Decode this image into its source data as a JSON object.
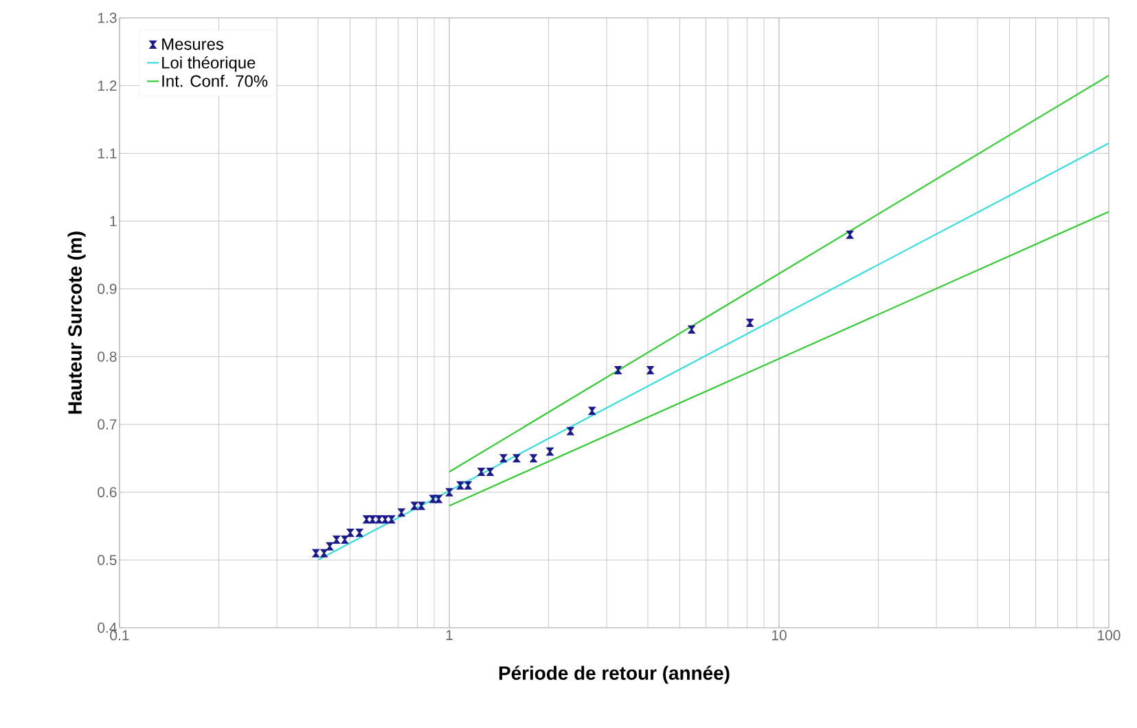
{
  "chart_data": {
    "type": "scatter",
    "xlabel": "Période de retour (année)",
    "ylabel": "Hauteur Surcote (m)",
    "log": "x",
    "xlim": [
      0.1,
      100
    ],
    "xticks": [
      0.1,
      1,
      10,
      100
    ],
    "ylim": [
      0.4,
      1.3
    ],
    "yticks": [
      0.4,
      0.5,
      0.6,
      0.7,
      0.8,
      0.9,
      1,
      1.1,
      1.2,
      1.3
    ],
    "grid": true,
    "legend": "top left",
    "series": [
      {
        "name": "Mesures",
        "color": "#1a1a8c",
        "x": [
          0.394,
          0.417,
          0.434,
          0.455,
          0.482,
          0.501,
          0.534,
          0.561,
          0.585,
          0.612,
          0.639,
          0.668,
          0.716,
          0.784,
          0.823,
          0.892,
          0.928,
          1.0,
          1.08,
          1.14,
          1.25,
          1.33,
          1.46,
          1.6,
          1.8,
          2.02,
          2.33,
          2.71,
          3.25,
          4.07,
          5.43,
          8.16,
          16.4
        ],
        "values": [
          0.51,
          0.51,
          0.52,
          0.53,
          0.53,
          0.54,
          0.54,
          0.56,
          0.56,
          0.56,
          0.56,
          0.56,
          0.57,
          0.58,
          0.58,
          0.59,
          0.59,
          0.6,
          0.61,
          0.61,
          0.63,
          0.63,
          0.65,
          0.65,
          0.65,
          0.66,
          0.69,
          0.72,
          0.78,
          0.78,
          0.84,
          0.85,
          0.98
        ]
      },
      {
        "name": "Loi théorique",
        "type": "line",
        "color": "#33dddd",
        "x": [
          0.4,
          100
        ],
        "values": [
          0.5,
          1.115
        ]
      },
      {
        "name": "Int. Conf. 70%",
        "type": "line",
        "color": "#33cc33",
        "x": [
          1,
          100
        ],
        "values": [
          0.63,
          1.215
        ]
      },
      {
        "type": "line",
        "color": "#33cc33",
        "x": [
          1,
          100
        ],
        "values": [
          0.58,
          1.014
        ]
      }
    ]
  }
}
